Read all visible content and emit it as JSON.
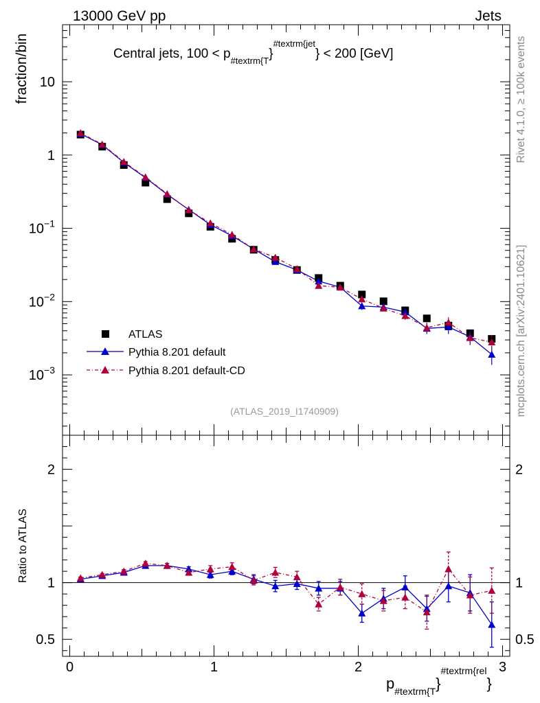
{
  "header": {
    "energy_label": "13000 GeV pp",
    "category_label": "Jets"
  },
  "side_labels": {
    "rivet": "Rivet 4.1.0, ≥ 100k events",
    "source": "mcplots.cern.ch [arXiv:2401.10621]"
  },
  "main_panel": {
    "title_prefix": "Central jets, 100 < p",
    "title_sub": "#textrm{T",
    "title_mid": "}",
    "title_sup": "#textrm{jet",
    "title_suffix": "} < 200 [GeV]",
    "ylabel": "fraction/bin",
    "analysis_id": "(ATLAS_2019_I1740909)",
    "y_ticks": [
      {
        "v": 10,
        "base": "10",
        "exp": ""
      },
      {
        "v": 1,
        "base": "1",
        "exp": ""
      },
      {
        "v": 0.1,
        "base": "10",
        "exp": "−1"
      },
      {
        "v": 0.01,
        "base": "10",
        "exp": "−2"
      },
      {
        "v": 0.001,
        "base": "10",
        "exp": "−3"
      }
    ]
  },
  "ratio_panel": {
    "ylabel": "Ratio to ATLAS",
    "y_ticks": [
      {
        "v": 2,
        "label": "2"
      },
      {
        "v": 1,
        "label": "1"
      },
      {
        "v": 0.5,
        "label": "0.5"
      }
    ]
  },
  "x_axis": {
    "label_main": "p",
    "label_sub": "#textrm{T",
    "label_mid": "}",
    "label_sup": "#textrm{rel",
    "label_end": "}",
    "ticks": [
      {
        "v": 0,
        "label": "0"
      },
      {
        "v": 1,
        "label": "1"
      },
      {
        "v": 2,
        "label": "2"
      },
      {
        "v": 3,
        "label": "3"
      }
    ]
  },
  "legend": [
    {
      "label": "ATLAS"
    },
    {
      "label": "Pythia 8.201 default"
    },
    {
      "label": "Pythia 8.201 default-CD"
    }
  ],
  "colors": {
    "data": "#000000",
    "default": "#0000cc",
    "default_cd": "#b0003c"
  },
  "chart_data": {
    "type": "scatter",
    "xlim": [
      -0.05,
      3.05
    ],
    "ylim_main": [
      0.00015,
      60
    ],
    "ylim_ratio": [
      0.35,
      2.3
    ],
    "log_y_main": true,
    "x": [
      0.075,
      0.225,
      0.375,
      0.525,
      0.675,
      0.825,
      0.975,
      1.125,
      1.275,
      1.425,
      1.575,
      1.725,
      1.875,
      2.025,
      2.175,
      2.325,
      2.475,
      2.625,
      2.775,
      2.925
    ],
    "series": [
      {
        "name": "ATLAS",
        "values": [
          1.9,
          1.3,
          0.73,
          0.42,
          0.25,
          0.16,
          0.105,
          0.072,
          0.051,
          0.037,
          0.027,
          0.021,
          0.0165,
          0.0125,
          0.0101,
          0.0076,
          0.0059,
          0.0047,
          0.0037,
          0.0031
        ]
      },
      {
        "name": "Pythia 8.201 default",
        "values": [
          1.95,
          1.38,
          0.79,
          0.49,
          0.29,
          0.18,
          0.112,
          0.079,
          0.052,
          0.035,
          0.027,
          0.019,
          0.0157,
          0.0087,
          0.0084,
          0.0072,
          0.0043,
          0.0045,
          0.0033,
          0.0019
        ],
        "ratio": [
          1.03,
          1.06,
          1.09,
          1.15,
          1.15,
          1.12,
          1.07,
          1.1,
          1.03,
          0.97,
          0.99,
          0.95,
          0.95,
          0.73,
          0.86,
          0.96,
          0.77,
          0.97,
          0.91,
          0.63
        ],
        "ratio_err": [
          0.01,
          0.01,
          0.015,
          0.015,
          0.02,
          0.02,
          0.03,
          0.03,
          0.04,
          0.05,
          0.05,
          0.06,
          0.06,
          0.08,
          0.09,
          0.1,
          0.11,
          0.14,
          0.16,
          0.2
        ]
      },
      {
        "name": "Pythia 8.201 default-CD",
        "values": [
          2.0,
          1.4,
          0.81,
          0.5,
          0.295,
          0.178,
          0.118,
          0.082,
          0.052,
          0.04,
          0.028,
          0.0165,
          0.0157,
          0.0108,
          0.0081,
          0.0064,
          0.0044,
          0.0052,
          0.0032,
          0.0028
        ],
        "ratio": [
          1.04,
          1.07,
          1.1,
          1.17,
          1.15,
          1.09,
          1.12,
          1.14,
          1.02,
          1.09,
          1.05,
          0.81,
          0.96,
          0.9,
          0.84,
          0.87,
          0.74,
          1.12,
          0.89,
          0.93
        ],
        "ratio_err": [
          0.01,
          0.01,
          0.015,
          0.015,
          0.02,
          0.025,
          0.03,
          0.035,
          0.04,
          0.045,
          0.05,
          0.06,
          0.07,
          0.09,
          0.09,
          0.1,
          0.15,
          0.15,
          0.16,
          0.2
        ]
      }
    ]
  }
}
